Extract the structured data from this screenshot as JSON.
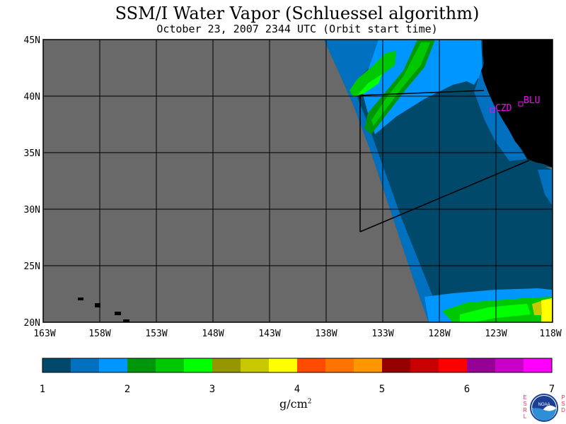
{
  "title": "SSM/I Water Vapor (Schluessel algorithm)",
  "subtitle": "October 23, 2007  2344 UTC  (Orbit start time)",
  "map": {
    "lat_labels": [
      "45N",
      "40N",
      "35N",
      "30N",
      "25N",
      "20N"
    ],
    "lon_labels": [
      "163W",
      "158W",
      "153W",
      "148W",
      "143W",
      "138W",
      "133W",
      "128W",
      "123W",
      "118W"
    ],
    "stations": [
      {
        "code": "CZD"
      },
      {
        "code": "BLU"
      }
    ],
    "colors": {
      "no_data": "#696969",
      "land": "#000000",
      "station": "#ff00ff"
    }
  },
  "colorbar": {
    "colors": [
      "#00496b",
      "#0070bf",
      "#0096ff",
      "#00960a",
      "#00c800",
      "#00ff00",
      "#969600",
      "#c8c800",
      "#ffff00",
      "#ff4b00",
      "#ff7300",
      "#ff9600",
      "#960000",
      "#c80000",
      "#ff0000",
      "#960096",
      "#c800c8",
      "#ff00ff"
    ],
    "tick_labels": [
      "1",
      "2",
      "3",
      "4",
      "5",
      "6",
      "7"
    ],
    "units_base": "g/cm",
    "units_exp": "2"
  },
  "logo": {
    "text": "NOAA",
    "left_letters": [
      "E",
      "S",
      "R",
      "L"
    ],
    "right_letters": [
      "P",
      "S",
      "D"
    ]
  }
}
